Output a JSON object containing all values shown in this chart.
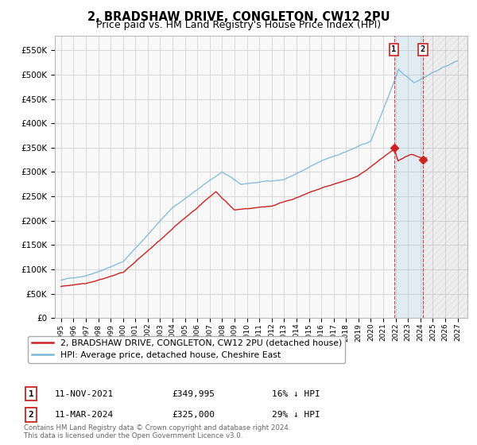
{
  "title": "2, BRADSHAW DRIVE, CONGLETON, CW12 2PU",
  "subtitle": "Price paid vs. HM Land Registry's House Price Index (HPI)",
  "ytick_values": [
    0,
    50000,
    100000,
    150000,
    200000,
    250000,
    300000,
    350000,
    400000,
    450000,
    500000,
    550000
  ],
  "ylim": [
    0,
    580000
  ],
  "xlim_start": 1994.5,
  "xlim_end": 2027.8,
  "xtick_years": [
    1995,
    1996,
    1997,
    1998,
    1999,
    2000,
    2001,
    2002,
    2003,
    2004,
    2005,
    2006,
    2007,
    2008,
    2009,
    2010,
    2011,
    2012,
    2013,
    2014,
    2015,
    2016,
    2017,
    2018,
    2019,
    2020,
    2021,
    2022,
    2023,
    2024,
    2025,
    2026,
    2027
  ],
  "hpi_color": "#7ab8d9",
  "price_color": "#cc2222",
  "annotation_color": "#cc2222",
  "grid_color": "#cccccc",
  "background_color": "#ffffff",
  "plot_bg_color": "#f8f8f8",
  "legend_label_price": "2, BRADSHAW DRIVE, CONGLETON, CW12 2PU (detached house)",
  "legend_label_hpi": "HPI: Average price, detached house, Cheshire East",
  "sale1_label": "1",
  "sale1_date": "11-NOV-2021",
  "sale1_price": "£349,995",
  "sale1_hpi": "16% ↓ HPI",
  "sale1_year": 2021.87,
  "sale1_value": 349995,
  "sale2_label": "2",
  "sale2_date": "11-MAR-2024",
  "sale2_price": "£325,000",
  "sale2_hpi": "29% ↓ HPI",
  "sale2_year": 2024.2,
  "sale2_value": 325000,
  "footer": "Contains HM Land Registry data © Crown copyright and database right 2024.\nThis data is licensed under the Open Government Licence v3.0.",
  "title_fontsize": 10.5,
  "subtitle_fontsize": 9
}
